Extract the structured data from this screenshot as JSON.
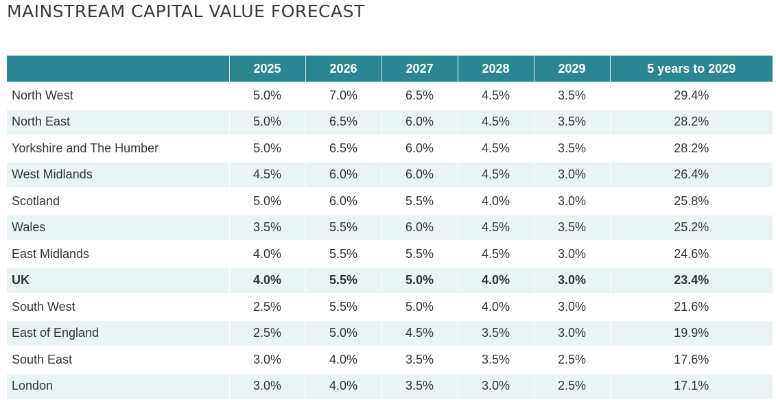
{
  "title": "MAINSTREAM CAPITAL VALUE FORECAST",
  "chart_data": {
    "type": "table",
    "title": "MAINSTREAM CAPITAL VALUE FORECAST",
    "columns": [
      "",
      "2025",
      "2026",
      "2027",
      "2028",
      "2029",
      "5 years to 2029"
    ],
    "rows": [
      {
        "region": "North West",
        "values": [
          "5.0%",
          "7.0%",
          "6.5%",
          "4.5%",
          "3.5%",
          "29.4%"
        ],
        "bold": false
      },
      {
        "region": "North East",
        "values": [
          "5.0%",
          "6.5%",
          "6.0%",
          "4.5%",
          "3.5%",
          "28.2%"
        ],
        "bold": false
      },
      {
        "region": "Yorkshire and The Humber",
        "values": [
          "5.0%",
          "6.5%",
          "6.0%",
          "4.5%",
          "3.5%",
          "28.2%"
        ],
        "bold": false
      },
      {
        "region": "West Midlands",
        "values": [
          "4.5%",
          "6.0%",
          "6.0%",
          "4.5%",
          "3.0%",
          "26.4%"
        ],
        "bold": false
      },
      {
        "region": "Scotland",
        "values": [
          "5.0%",
          "6.0%",
          "5.5%",
          "4.0%",
          "3.0%",
          "25.8%"
        ],
        "bold": false
      },
      {
        "region": "Wales",
        "values": [
          "3.5%",
          "5.5%",
          "6.0%",
          "4.5%",
          "3.5%",
          "25.2%"
        ],
        "bold": false
      },
      {
        "region": "East Midlands",
        "values": [
          "4.0%",
          "5.5%",
          "5.5%",
          "4.5%",
          "3.0%",
          "24.6%"
        ],
        "bold": false
      },
      {
        "region": "UK",
        "values": [
          "4.0%",
          "5.5%",
          "5.0%",
          "4.0%",
          "3.0%",
          "23.4%"
        ],
        "bold": true
      },
      {
        "region": "South West",
        "values": [
          "2.5%",
          "5.5%",
          "5.0%",
          "4.0%",
          "3.0%",
          "21.6%"
        ],
        "bold": false
      },
      {
        "region": "East of England",
        "values": [
          "2.5%",
          "5.0%",
          "4.5%",
          "3.5%",
          "3.0%",
          "19.9%"
        ],
        "bold": false
      },
      {
        "region": "South East",
        "values": [
          "3.0%",
          "4.0%",
          "3.5%",
          "3.5%",
          "2.5%",
          "17.6%"
        ],
        "bold": false
      },
      {
        "region": "London",
        "values": [
          "3.0%",
          "4.0%",
          "3.5%",
          "3.0%",
          "2.5%",
          "17.1%"
        ],
        "bold": false
      }
    ],
    "colors": {
      "header_background": "#2a8791",
      "header_text": "#ffffff",
      "stripe_background": "#eaf4f5",
      "body_text": "#333333"
    }
  }
}
